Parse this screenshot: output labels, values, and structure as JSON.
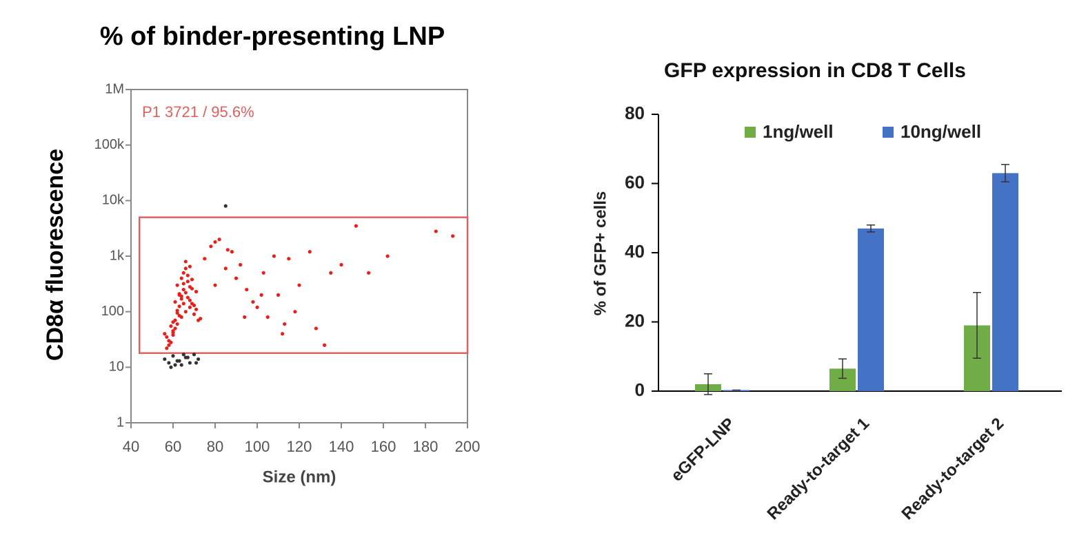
{
  "chart_data": [
    {
      "type": "scatter",
      "title": "% of binder-presenting LNP",
      "y_label": "CD8α fluorescence",
      "x_label": "Size (nm)",
      "annotation": "P1  3721 / 95.6%",
      "log_y": true,
      "xlim": [
        40,
        200
      ],
      "xticks": [
        40,
        60,
        80,
        100,
        120,
        140,
        160,
        180,
        200
      ],
      "ylim": [
        1,
        1000000
      ],
      "yticks": [
        1,
        10,
        100,
        {
          "value": 1000,
          "label": "1k"
        },
        {
          "value": 10000,
          "label": "10k"
        },
        {
          "value": 100000,
          "label": "100k"
        },
        {
          "value": 1000000,
          "label": "1M"
        }
      ],
      "gate": {
        "xlim": [
          44,
          200
        ],
        "ylim": [
          18,
          5000
        ],
        "color": "#e06060"
      },
      "series": [
        {
          "color": "#e8201c",
          "x": [
            58,
            60,
            62,
            64,
            66,
            68,
            70,
            72,
            56,
            59,
            61,
            63,
            65,
            67,
            69,
            71,
            57,
            60,
            62,
            64,
            66,
            68,
            70,
            73,
            58,
            61,
            63,
            65,
            67,
            69,
            59,
            62,
            64,
            66,
            68,
            71,
            60,
            63,
            65,
            67,
            57,
            61,
            64,
            66,
            69,
            62,
            65,
            68,
            60,
            63,
            75,
            78,
            80,
            82,
            85,
            88,
            90,
            92,
            95,
            98,
            100,
            103,
            105,
            108,
            110,
            113,
            115,
            118,
            120,
            125,
            128,
            132,
            135,
            140,
            147,
            153,
            162,
            185,
            193,
            80,
            86,
            94,
            102,
            112
          ],
          "values": [
            30,
            45,
            60,
            80,
            100,
            120,
            90,
            70,
            40,
            55,
            150,
            200,
            250,
            180,
            140,
            110,
            35,
            65,
            300,
            400,
            220,
            160,
            130,
            75,
            25,
            50,
            85,
            500,
            350,
            260,
            28,
            95,
            170,
            600,
            280,
            230,
            38,
            125,
            320,
            450,
            22,
            70,
            190,
            800,
            380,
            105,
            140,
            650,
            42,
            210,
            900,
            1500,
            300,
            2000,
            600,
            1200,
            400,
            700,
            250,
            150,
            120,
            500,
            80,
            1000,
            200,
            60,
            900,
            100,
            300,
            1200,
            50,
            25,
            500,
            700,
            3500,
            500,
            1000,
            2800,
            2300,
            1800,
            1300,
            80,
            200,
            40
          ]
        },
        {
          "color": "#333333",
          "x": [
            56,
            58,
            60,
            62,
            64,
            66,
            68,
            70,
            72,
            59,
            63,
            67,
            71,
            65,
            61,
            85
          ],
          "values": [
            14,
            12,
            16,
            13,
            11,
            15,
            12,
            17,
            14,
            10,
            13,
            15,
            12,
            17,
            11,
            8000
          ]
        }
      ]
    },
    {
      "type": "bar",
      "title": "GFP expression in  CD8 T Cells",
      "y_label": "% of GFP+ cells",
      "categories": [
        "eGFP-LNP",
        "Ready-to-target 1",
        "Ready-to-target 2"
      ],
      "ylim": [
        0,
        80
      ],
      "yticks": [
        0,
        20,
        40,
        60,
        80
      ],
      "legend": "top",
      "series": [
        {
          "name": "1ng/well",
          "color": "#70ad47",
          "values": [
            2,
            6.5,
            19
          ],
          "errors": [
            3,
            2.8,
            9.5
          ]
        },
        {
          "name": "10ng/well",
          "color": "#4472c4",
          "values": [
            0.3,
            47,
            63
          ],
          "errors": [
            0,
            1,
            2.5
          ]
        }
      ]
    }
  ]
}
